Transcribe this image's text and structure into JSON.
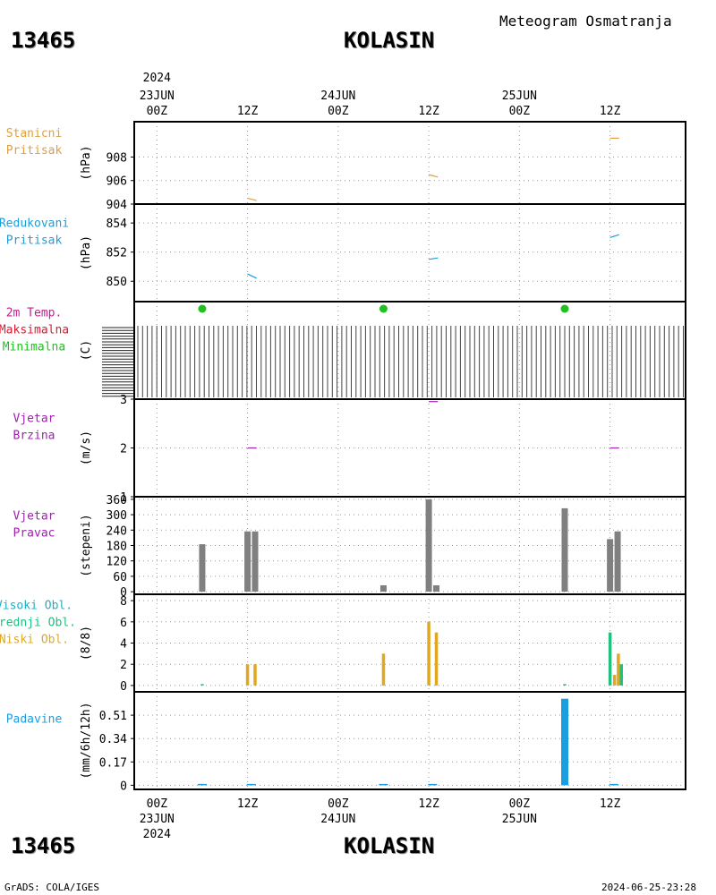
{
  "header": {
    "title": "Meteogram Osmatranja",
    "station_id": "13465",
    "station_name": "KOLASIN"
  },
  "footer": {
    "station_id": "13465",
    "station_name": "KOLASIN",
    "credit": "GrADS: COLA/IGES",
    "timestamp": "2024-06-25-23:28"
  },
  "time_axis": {
    "top_year": "2024",
    "top_ticks": [
      {
        "hour": 0,
        "top": [
          "23JUN",
          "00Z"
        ]
      },
      {
        "hour": 12,
        "top": [
          "12Z"
        ]
      },
      {
        "hour": 24,
        "top": [
          "24JUN",
          "00Z"
        ]
      },
      {
        "hour": 36,
        "top": [
          "12Z"
        ]
      },
      {
        "hour": 48,
        "top": [
          "25JUN",
          "00Z"
        ]
      },
      {
        "hour": 60,
        "top": [
          "12Z"
        ]
      }
    ],
    "bottom_ticks": [
      {
        "hour": 0,
        "bottom": [
          "00Z",
          "23JUN",
          "2024"
        ]
      },
      {
        "hour": 12,
        "bottom": [
          "12Z"
        ]
      },
      {
        "hour": 24,
        "bottom": [
          "00Z",
          "24JUN"
        ]
      },
      {
        "hour": 36,
        "bottom": [
          "12Z"
        ]
      },
      {
        "hour": 48,
        "bottom": [
          "00Z",
          "25JUN"
        ]
      },
      {
        "hour": 60,
        "bottom": [
          "12Z"
        ]
      }
    ],
    "range_hours": [
      -3,
      70
    ]
  },
  "colors": {
    "station_pressure": "#e0a040",
    "reduced_pressure": "#1e9ed8",
    "temp_label": "#c0208c",
    "max_label": "#e01830",
    "min_label": "#20c020",
    "wind": "#a020b0",
    "wind_bar": "#808080",
    "high_cloud": "#1ab0c8",
    "mid_cloud": "#20c080",
    "low_cloud": "#e0a820",
    "precip": "#1a9ee0",
    "grid": "#999999"
  },
  "chart_data": [
    {
      "type": "line",
      "panel": "station_pressure",
      "label_lines": [
        "Stanicni",
        "Pritisak"
      ],
      "unit": "(hPa)",
      "ylim": [
        904,
        911
      ],
      "yticks": [
        "904",
        "906",
        "908"
      ],
      "ytick_values": [
        904,
        906,
        908
      ],
      "grid": true,
      "series": [
        {
          "segments": [
            [
              [
                12.0,
                904.5
              ],
              [
                13.2,
                904.3
              ]
            ],
            [
              [
                36.0,
                906.5
              ],
              [
                37.2,
                906.3
              ]
            ],
            [
              [
                60.0,
                909.6
              ],
              [
                61.2,
                909.6
              ]
            ]
          ]
        }
      ]
    },
    {
      "type": "line",
      "panel": "reduced_pressure",
      "label_lines": [
        "Redukovani",
        "Pritisak"
      ],
      "unit": "(hPa)",
      "ylim": [
        848.6,
        855.3
      ],
      "yticks": [
        "850",
        "852",
        "854"
      ],
      "ytick_values": [
        850,
        852,
        854
      ],
      "grid": true,
      "series": [
        {
          "segments": [
            [
              [
                12.0,
                850.5
              ],
              [
                13.2,
                850.2
              ]
            ],
            [
              [
                36.0,
                851.5
              ],
              [
                37.2,
                851.6
              ]
            ],
            [
              [
                60.0,
                853.0
              ],
              [
                61.2,
                853.2
              ]
            ]
          ]
        }
      ]
    },
    {
      "type": "scatter",
      "panel": "temperature",
      "label_lines": [
        "2m Temp.",
        "Maksimalna",
        "Minimalna"
      ],
      "unit": "(C)",
      "grid": true,
      "series": [
        {
          "name": "Minimalna",
          "points": [
            [
              6,
              0
            ],
            [
              30,
              0
            ],
            [
              54,
              0
            ]
          ]
        }
      ]
    },
    {
      "type": "line",
      "panel": "wind_speed",
      "label_lines": [
        "Vjetar",
        "Brzina"
      ],
      "unit": "(m/s)",
      "ylim": [
        1,
        3
      ],
      "yticks": [
        "1",
        "2",
        "3"
      ],
      "ytick_values": [
        1,
        2,
        3
      ],
      "grid": true,
      "series": [
        {
          "segments": [
            [
              [
                12.0,
                2.0
              ],
              [
                13.2,
                2.0
              ]
            ],
            [
              [
                36.0,
                2.95
              ],
              [
                37.2,
                2.95
              ]
            ],
            [
              [
                60.0,
                2.0
              ],
              [
                61.2,
                2.0
              ]
            ]
          ]
        }
      ]
    },
    {
      "type": "bar",
      "panel": "wind_direction",
      "label_lines": [
        "Vjetar",
        "Pravac"
      ],
      "unit": "(stepeni)",
      "ylim": [
        -10,
        370
      ],
      "yticks": [
        "0",
        "60",
        "120",
        "180",
        "240",
        "300",
        "360"
      ],
      "ytick_values": [
        0,
        60,
        120,
        180,
        240,
        300,
        360
      ],
      "grid": true,
      "bars": [
        {
          "hour": 6,
          "value": 185
        },
        {
          "hour": 12,
          "value": 235
        },
        {
          "hour": 13,
          "value": 235
        },
        {
          "hour": 30,
          "value": 25
        },
        {
          "hour": 36,
          "value": 360
        },
        {
          "hour": 37,
          "value": 25
        },
        {
          "hour": 54,
          "value": 325
        },
        {
          "hour": 60,
          "value": 205
        },
        {
          "hour": 61,
          "value": 235
        }
      ]
    },
    {
      "type": "bar",
      "panel": "clouds",
      "label_lines": [
        "Visoki Obl.",
        "Srednji Obl.",
        "Niski Obl."
      ],
      "unit": "(8/8)",
      "ylim": [
        -0.6,
        8.6
      ],
      "yticks": [
        "0",
        "2",
        "4",
        "6",
        "8"
      ],
      "ytick_values": [
        0,
        2,
        4,
        6,
        8
      ],
      "grid": true,
      "bars": [
        {
          "hour": 6,
          "value": 0.08,
          "layer": "mid"
        },
        {
          "hour": 12,
          "value": 2,
          "layer": "low"
        },
        {
          "hour": 13,
          "value": 2,
          "layer": "low"
        },
        {
          "hour": 30,
          "value": 3,
          "layer": "low"
        },
        {
          "hour": 36,
          "value": 6,
          "layer": "low"
        },
        {
          "hour": 37,
          "value": 5,
          "layer": "low"
        },
        {
          "hour": 54,
          "value": 0.08,
          "layer": "mid"
        },
        {
          "hour": 60,
          "value": 5,
          "layer": "mid"
        },
        {
          "hour": 60.6,
          "value": 1,
          "layer": "low"
        },
        {
          "hour": 61.1,
          "value": 3,
          "layer": "low"
        },
        {
          "hour": 61.5,
          "value": 2,
          "layer": "mid"
        }
      ]
    },
    {
      "type": "bar",
      "panel": "precipitation",
      "label_lines": [
        "Padavine"
      ],
      "unit": "(mm/6h/12h)",
      "ylim": [
        -0.03,
        0.68
      ],
      "yticks": [
        "0",
        "0.17",
        "0.34",
        "0.51"
      ],
      "ytick_values": [
        0,
        0.17,
        0.34,
        0.51
      ],
      "grid": true,
      "bars": [
        {
          "hour": 6,
          "value": 0.0
        },
        {
          "hour": 12.5,
          "value": 0.0
        },
        {
          "hour": 30,
          "value": 0.0
        },
        {
          "hour": 36.5,
          "value": 0.0
        },
        {
          "hour": 54,
          "value": 0.63
        },
        {
          "hour": 60.5,
          "value": 0.0
        }
      ]
    }
  ]
}
